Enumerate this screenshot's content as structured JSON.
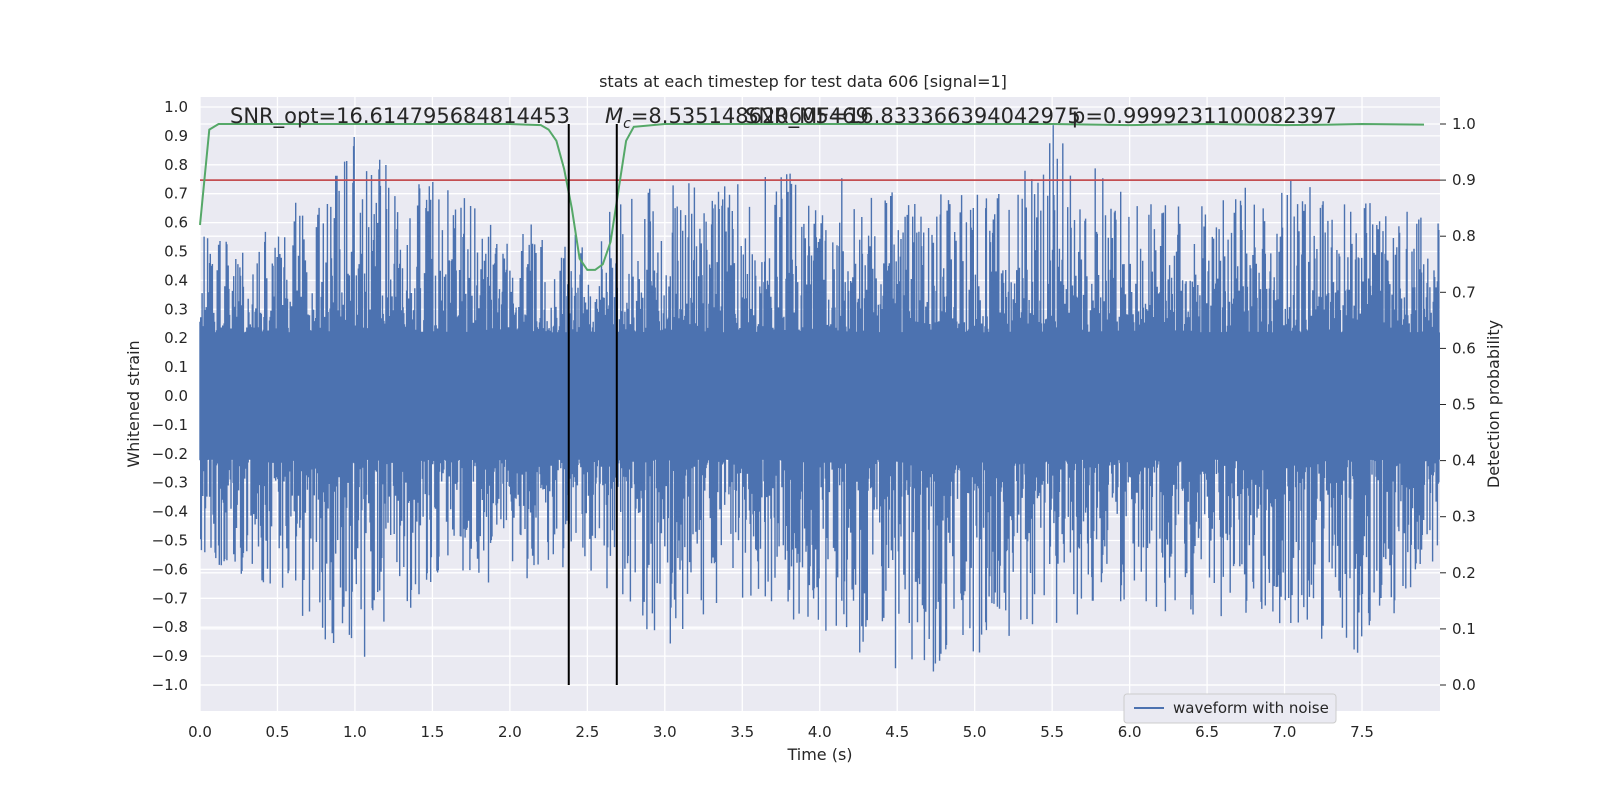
{
  "chart_data": {
    "type": "line",
    "title": "stats at each timestep for test data 606 [signal=1]",
    "xlabel": "Time (s)",
    "ylabel_left": "Whitened strain",
    "ylabel_right": "Detection probability",
    "xlim": [
      0.0,
      8.0
    ],
    "ylim_left": [
      -1.0,
      1.0
    ],
    "ylim_right": [
      0.0,
      1.0
    ],
    "x_ticks": [
      "0.0",
      "0.5",
      "1.0",
      "1.5",
      "2.0",
      "2.5",
      "3.0",
      "3.5",
      "4.0",
      "4.5",
      "5.0",
      "5.5",
      "6.0",
      "6.5",
      "7.0",
      "7.5"
    ],
    "y_left_ticks": [
      "1.0",
      "0.9",
      "0.8",
      "0.7",
      "0.6",
      "0.5",
      "0.4",
      "0.3",
      "0.2",
      "0.1",
      "0.0",
      "−0.1",
      "−0.2",
      "−0.3",
      "−0.4",
      "−0.5",
      "−0.6",
      "−0.7",
      "−0.8",
      "−0.9",
      "−1.0"
    ],
    "y_right_ticks": [
      "1.0",
      "0.9",
      "0.8",
      "0.7",
      "0.6",
      "0.5",
      "0.4",
      "0.3",
      "0.2",
      "0.1",
      "0.0"
    ],
    "annotations": {
      "snr_opt": "SNR_opt=16.614795684814453",
      "mc_symbol": "M",
      "mc_sub": "c",
      "mc_value": "=8.535148620605469",
      "snr_mf": "SNR_MF=16.833366394042975",
      "p_value": "p=0.9999231100082397"
    },
    "legend": {
      "placement": "lower-right",
      "entries": [
        {
          "name": "waveform with noise",
          "color": "#4c72b0"
        }
      ]
    },
    "threshold_right": 0.9,
    "vertical_lines_x": [
      2.38,
      2.69
    ],
    "colors": {
      "waveform": "#4c72b0",
      "probability": "#55a868",
      "threshold": "#c44e52",
      "vlines": "#000000",
      "background": "#eaeaf2",
      "grid": "#ffffff"
    },
    "waveform_envelope": {
      "description_values": "approximate positive/negative envelope of whitened strain vs time",
      "t": [
        0.0,
        0.5,
        1.0,
        1.5,
        2.0,
        2.38,
        2.5,
        2.69,
        3.0,
        3.5,
        4.0,
        4.5,
        5.0,
        5.5,
        6.0,
        6.5,
        7.0,
        7.5,
        8.0
      ],
      "max": [
        0.55,
        0.6,
        0.9,
        0.75,
        0.65,
        0.6,
        0.5,
        0.7,
        0.75,
        0.75,
        0.8,
        0.7,
        0.7,
        0.95,
        0.7,
        0.7,
        0.75,
        0.7,
        0.6
      ],
      "min": [
        -0.55,
        -0.7,
        -0.95,
        -0.65,
        -0.65,
        -0.6,
        -0.6,
        -0.7,
        -0.9,
        -0.75,
        -0.8,
        -1.0,
        -0.9,
        -0.8,
        -0.7,
        -0.8,
        -0.8,
        -0.9,
        -0.55
      ]
    },
    "probability_series": {
      "name": "",
      "x": [
        0.0,
        0.06,
        0.12,
        0.5,
        1.0,
        1.5,
        2.0,
        2.1,
        2.2,
        2.25,
        2.3,
        2.35,
        2.4,
        2.45,
        2.5,
        2.55,
        2.6,
        2.65,
        2.7,
        2.75,
        2.8,
        3.0,
        3.5,
        4.0,
        4.5,
        5.0,
        5.5,
        6.0,
        6.5,
        7.0,
        7.3,
        7.5,
        7.9
      ],
      "y": [
        0.82,
        0.99,
        1.0,
        1.0,
        1.0,
        1.0,
        1.0,
        0.999,
        0.998,
        0.99,
        0.97,
        0.92,
        0.85,
        0.76,
        0.74,
        0.74,
        0.75,
        0.79,
        0.88,
        0.97,
        0.995,
        1.0,
        1.0,
        1.0,
        1.0,
        1.0,
        1.0,
        0.998,
        1.0,
        0.998,
        0.999,
        1.0,
        0.999
      ]
    }
  }
}
